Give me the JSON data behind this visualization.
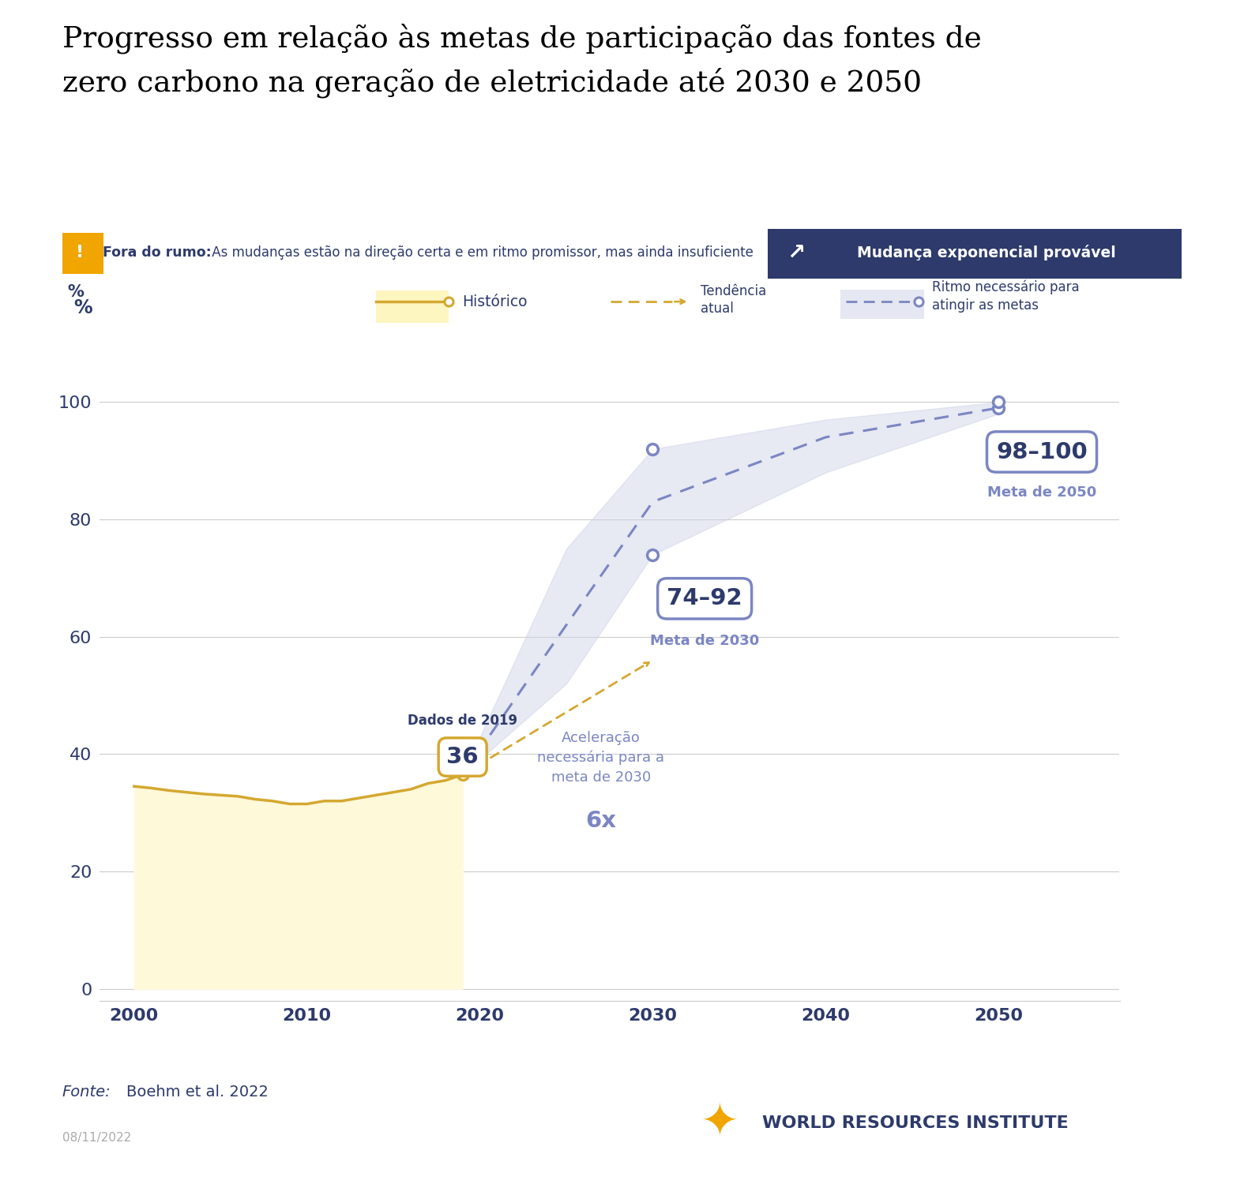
{
  "title_line1": "Progresso em relação às metas de participação das fontes de",
  "title_line2": "zero carbono na geração de eletricidade até 2030 e 2050",
  "bg_color": "#ffffff",
  "plot_bg": "#ffffff",
  "banner_bg": "#f5f0d8",
  "banner_right_bg": "#2d3a6b",
  "banner_icon_color": "#f0a500",
  "banner_text_left_bold": "Fora do rumo:",
  "banner_text_left": " As mudanças estão na direção certa e em ritmo promissor, mas ainda insuficiente",
  "banner_text_right": "Mudança exponencial provável",
  "hist_x": [
    2000,
    2001,
    2002,
    2003,
    2004,
    2005,
    2006,
    2007,
    2008,
    2009,
    2010,
    2011,
    2012,
    2013,
    2014,
    2015,
    2016,
    2017,
    2018,
    2019
  ],
  "hist_y": [
    34.5,
    34.2,
    33.8,
    33.5,
    33.2,
    33.0,
    32.8,
    32.3,
    32.0,
    31.5,
    31.5,
    32.0,
    32.0,
    32.5,
    33.0,
    33.5,
    34.0,
    35.0,
    35.5,
    36.5
  ],
  "hist_line_color": "#d4a830",
  "hist_fill_color": "#fef6c0",
  "trend_x": [
    2019,
    2023,
    2027,
    2030
  ],
  "trend_y": [
    36.5,
    42.0,
    50.0,
    56.0
  ],
  "trend_color": "#d4a830",
  "needed_x": [
    2019,
    2025,
    2030,
    2040,
    2050
  ],
  "needed_y": [
    36.5,
    62.0,
    83.0,
    94.0,
    99.0
  ],
  "needed_upper": [
    36.5,
    75.0,
    92.0,
    97.0,
    100.0
  ],
  "needed_lower": [
    36.5,
    52.0,
    74.0,
    88.0,
    98.0
  ],
  "needed_color": "#7b86c2",
  "needed_fill_color": "#d0d5e8",
  "marker_2030_upper": 92.0,
  "marker_2030_lower": 74.0,
  "marker_2050_upper": 100.0,
  "marker_2050_lower": 98.0,
  "ylabel": "%",
  "yticks": [
    0,
    20,
    40,
    60,
    80,
    100
  ],
  "xticks": [
    2000,
    2010,
    2020,
    2030,
    2040,
    2050
  ],
  "xlim": [
    1998,
    2057
  ],
  "ylim": [
    -2,
    110
  ],
  "grid_color": "#cccccc",
  "fonte_text_italic": "Fonte:",
  "fonte_text_normal": " Boehm et al. 2022",
  "date_text": "08/11/2022",
  "wri_text": "WORLD RESOURCES INSTITUTE",
  "dark_blue": "#2d3a6b",
  "gold": "#d4a830",
  "light_purple": "#7b86c2",
  "wri_logo_color": "#f0a500"
}
